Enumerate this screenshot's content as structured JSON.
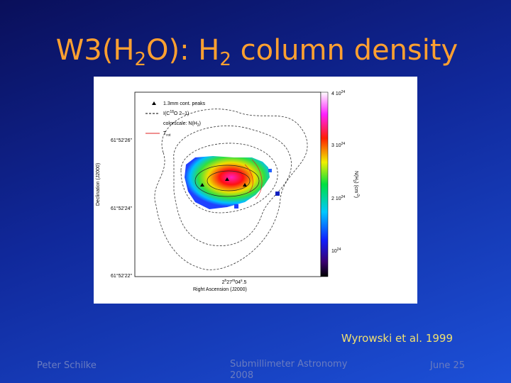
{
  "title": {
    "parts": [
      "W3(H",
      "2",
      "O): H",
      "2",
      " column density"
    ]
  },
  "figure": {
    "legend": {
      "peaks": "1.3mm cont. peaks",
      "c18o": {
        "parts": [
          "I(C",
          "18",
          "O 2–1)"
        ]
      },
      "colorscale": {
        "parts": [
          "colorscale: N(H",
          "2",
          ")"
        ]
      },
      "trot": {
        "parts": [
          "T",
          "rot"
        ]
      }
    },
    "y_label": "Declination (J2000)",
    "y_ticks": [
      "61°52'26\"",
      "61°52'24\"",
      "61°52'22\""
    ],
    "x_label": "Right Ascension (J2000)",
    "x_tick": {
      "parts": [
        "2",
        "h",
        "27",
        "m",
        "04",
        "s",
        ".5"
      ]
    },
    "colorbar_ticks": [
      {
        "parts": [
          "4 10",
          "24"
        ]
      },
      {
        "parts": [
          "3 10",
          "24"
        ]
      },
      {
        "parts": [
          "2 10",
          "24"
        ]
      },
      {
        "parts": [
          "10",
          "24"
        ]
      }
    ],
    "colorbar_label": {
      "parts": [
        "N(H",
        "2",
        ") (cm",
        "-2",
        ")"
      ]
    }
  },
  "citation": "Wyrowski et al. 1999",
  "footer": {
    "author": "Peter Schilke",
    "event": "Submillimeter Astronomy 2008",
    "date": "June 25"
  }
}
